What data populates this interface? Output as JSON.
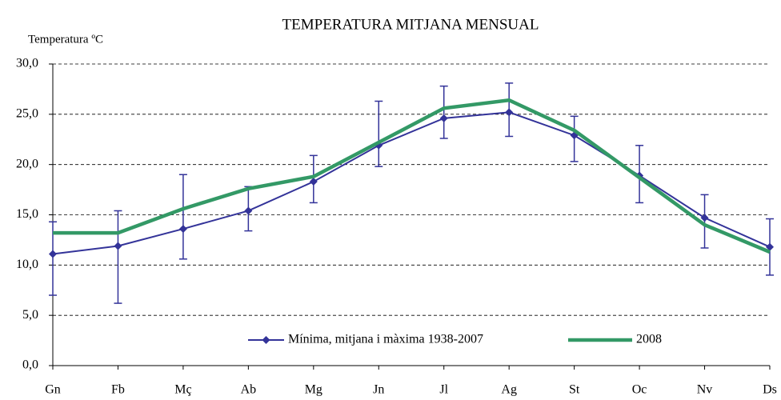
{
  "chart_data": {
    "type": "line",
    "title": "TEMPERATURA MITJANA MENSUAL",
    "y_label": "Temperatura ºC",
    "categories": [
      "Gn",
      "Fb",
      "Mç",
      "Ab",
      "Mg",
      "Jn",
      "Jl",
      "Ag",
      "St",
      "Oc",
      "Nv",
      "Ds"
    ],
    "series": [
      {
        "name": "Mínima, mitjana i màxima 1938-2007",
        "color": "#333399",
        "values": [
          11.1,
          11.9,
          13.6,
          15.4,
          18.3,
          21.9,
          24.6,
          25.2,
          22.9,
          18.9,
          14.7,
          11.8
        ],
        "low": [
          7.0,
          6.2,
          10.6,
          13.4,
          16.2,
          19.8,
          22.6,
          22.8,
          20.3,
          16.2,
          11.7,
          9.0
        ],
        "high": [
          14.3,
          15.4,
          19.0,
          17.8,
          20.9,
          26.3,
          27.8,
          28.1,
          24.8,
          21.9,
          17.0,
          14.6
        ]
      },
      {
        "name": "2008",
        "color": "#339966",
        "values": [
          13.2,
          13.2,
          15.6,
          17.6,
          18.8,
          22.2,
          25.6,
          26.4,
          23.4,
          18.7,
          14.0,
          11.3
        ]
      }
    ],
    "ylim": [
      0,
      30
    ],
    "yticks": [
      {
        "value": 0,
        "label": "0,0"
      },
      {
        "value": 5,
        "label": "5,0"
      },
      {
        "value": 10,
        "label": "10,0"
      },
      {
        "value": 15,
        "label": "15,0"
      },
      {
        "value": 20,
        "label": "20,0"
      },
      {
        "value": 25,
        "label": "25,0"
      },
      {
        "value": 30,
        "label": "30,0"
      }
    ],
    "grid": true
  }
}
